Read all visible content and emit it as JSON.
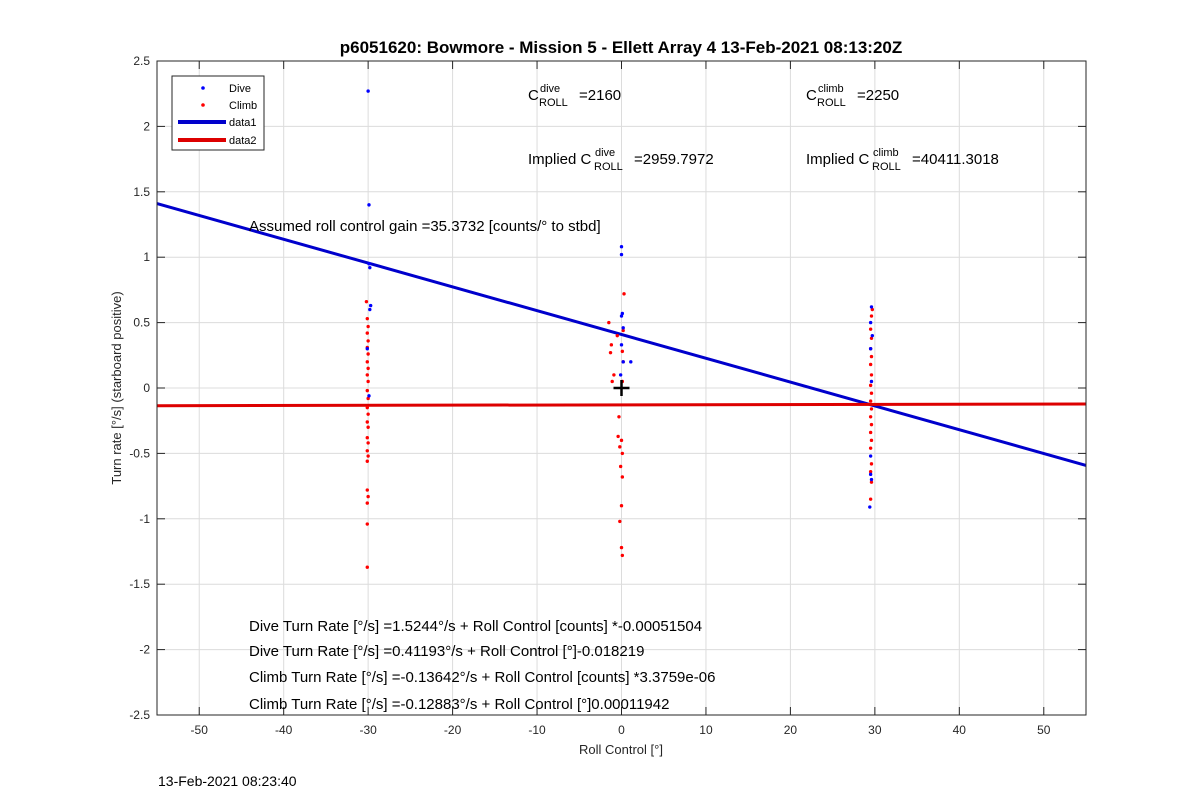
{
  "chart_data": {
    "type": "scatter",
    "title": "p6051620: Bowmore - Mission 5 - Ellett Array 4 13-Feb-2021 08:13:20Z",
    "xlabel": "Roll Control [°]",
    "ylabel": "Turn rate [°/s] (starboard positive)",
    "xlim": [
      -55,
      55
    ],
    "ylim": [
      -2.5,
      2.5
    ],
    "xticks": [
      -50,
      -40,
      -30,
      -20,
      -10,
      0,
      10,
      20,
      30,
      40,
      50
    ],
    "yticks": [
      -2.5,
      -2,
      -1.5,
      -1,
      -0.5,
      0,
      0.5,
      1,
      1.5,
      2,
      2.5
    ],
    "grid": true,
    "legend_position": "top-left",
    "legend": [
      "Dive",
      "Climb",
      "data1",
      "data2"
    ],
    "colors": {
      "dive": "#0000ff",
      "climb": "#ff0000",
      "data1": "#0000cc",
      "data2": "#dd0000"
    },
    "series": [
      {
        "name": "Dive",
        "style": "points",
        "points": [
          [
            -30,
            2.27
          ],
          [
            -29.9,
            1.4
          ],
          [
            -29.9,
            0.95
          ],
          [
            -29.8,
            0.92
          ],
          [
            -29.7,
            0.63
          ],
          [
            -29.8,
            0.6
          ],
          [
            -29.9,
            -0.06
          ],
          [
            -30.1,
            0.3
          ],
          [
            0,
            1.08
          ],
          [
            0,
            1.02
          ],
          [
            0.1,
            0.57
          ],
          [
            0,
            0.55
          ],
          [
            0.2,
            0.46
          ],
          [
            0,
            0.33
          ],
          [
            0.2,
            0.2
          ],
          [
            1.1,
            0.2
          ],
          [
            -0.1,
            0.1
          ],
          [
            29.6,
            0.62
          ],
          [
            29.5,
            0.5
          ],
          [
            29.7,
            0.4
          ],
          [
            29.5,
            0.3
          ],
          [
            29.6,
            0.05
          ],
          [
            29.5,
            -0.52
          ],
          [
            29.5,
            -0.66
          ],
          [
            29.6,
            -0.7
          ],
          [
            29.4,
            -0.91
          ]
        ]
      },
      {
        "name": "Climb",
        "style": "points",
        "points": [
          [
            -30.2,
            0.66
          ],
          [
            -30.1,
            0.53
          ],
          [
            -30,
            0.47
          ],
          [
            -30.1,
            0.42
          ],
          [
            -30,
            0.36
          ],
          [
            -30.1,
            0.31
          ],
          [
            -30,
            0.26
          ],
          [
            -30.1,
            0.2
          ],
          [
            -30,
            0.15
          ],
          [
            -30.1,
            0.1
          ],
          [
            -30,
            0.05
          ],
          [
            -30.1,
            -0.02
          ],
          [
            -30,
            -0.08
          ],
          [
            -30.1,
            -0.15
          ],
          [
            -30,
            -0.2
          ],
          [
            -30.1,
            -0.26
          ],
          [
            -30,
            -0.3
          ],
          [
            -30.1,
            -0.38
          ],
          [
            -30,
            -0.42
          ],
          [
            -30.1,
            -0.48
          ],
          [
            -30,
            -0.52
          ],
          [
            -30.1,
            -0.56
          ],
          [
            -30.1,
            -0.78
          ],
          [
            -30,
            -0.83
          ],
          [
            -30.1,
            -0.88
          ],
          [
            -30.1,
            -1.04
          ],
          [
            -30.1,
            -1.37
          ],
          [
            0.3,
            0.72
          ],
          [
            -1.5,
            0.5
          ],
          [
            0.2,
            0.44
          ],
          [
            -0.5,
            0.4
          ],
          [
            -1.2,
            0.33
          ],
          [
            0.1,
            0.28
          ],
          [
            -1.3,
            0.27
          ],
          [
            0.2,
            0.2
          ],
          [
            -0.9,
            0.1
          ],
          [
            0.1,
            0.05
          ],
          [
            -1.1,
            0.05
          ],
          [
            -0.3,
            -0.22
          ],
          [
            -0.4,
            -0.37
          ],
          [
            0,
            -0.4
          ],
          [
            -0.2,
            -0.45
          ],
          [
            0.1,
            -0.5
          ],
          [
            -0.1,
            -0.6
          ],
          [
            0.1,
            -0.68
          ],
          [
            0,
            -0.9
          ],
          [
            -0.2,
            -1.02
          ],
          [
            0,
            -1.22
          ],
          [
            0.1,
            -1.28
          ],
          [
            29.7,
            0.6
          ],
          [
            29.6,
            0.55
          ],
          [
            29.5,
            0.45
          ],
          [
            29.6,
            0.38
          ],
          [
            29.5,
            0.3
          ],
          [
            29.6,
            0.24
          ],
          [
            29.5,
            0.18
          ],
          [
            29.6,
            0.1
          ],
          [
            29.5,
            0.02
          ],
          [
            29.6,
            -0.04
          ],
          [
            29.5,
            -0.1
          ],
          [
            29.6,
            -0.16
          ],
          [
            29.5,
            -0.22
          ],
          [
            29.6,
            -0.28
          ],
          [
            29.5,
            -0.34
          ],
          [
            29.6,
            -0.4
          ],
          [
            29.5,
            -0.46
          ],
          [
            29.6,
            -0.58
          ],
          [
            29.5,
            -0.64
          ],
          [
            29.6,
            -0.72
          ],
          [
            29.5,
            -0.85
          ]
        ]
      },
      {
        "name": "data1",
        "style": "line",
        "x": [
          -55,
          55
        ],
        "y": [
          1.4101,
          -0.5918
        ]
      },
      {
        "name": "data2",
        "style": "line",
        "x": [
          -55,
          55
        ],
        "y": [
          -0.1354,
          -0.1223
        ]
      }
    ],
    "marker": {
      "x": 0,
      "y": 0
    },
    "annotations": {
      "c_dive": {
        "base": "C",
        "sup": "dive",
        "sub": "ROLL",
        "value": "=2160"
      },
      "c_climb": {
        "base": "C",
        "sup": "climb",
        "sub": "ROLL",
        "value": "=2250"
      },
      "implied_dive": {
        "prefix": "Implied C",
        "sup": "dive",
        "sub": "ROLL",
        "value": "=2959.7972"
      },
      "implied_climb": {
        "prefix": "Implied C",
        "sup": "climb",
        "sub": "ROLL",
        "value": "=40411.3018"
      },
      "gain": "Assumed roll control gain =35.3732 [counts/° to stbd]",
      "eq1": "Dive Turn Rate [°/s] =1.5244°/s + Roll Control [counts] *-0.00051504",
      "eq2": "Dive Turn Rate [°/s] =0.41193°/s + Roll Control [°]-0.018219",
      "eq3": "Climb Turn Rate [°/s] =-0.13642°/s + Roll Control [counts] *3.3759e-06",
      "eq4": "Climb Turn Rate [°/s] =-0.12883°/s + Roll Control [°]0.00011942"
    }
  },
  "footer_timestamp": "13-Feb-2021 08:23:40"
}
